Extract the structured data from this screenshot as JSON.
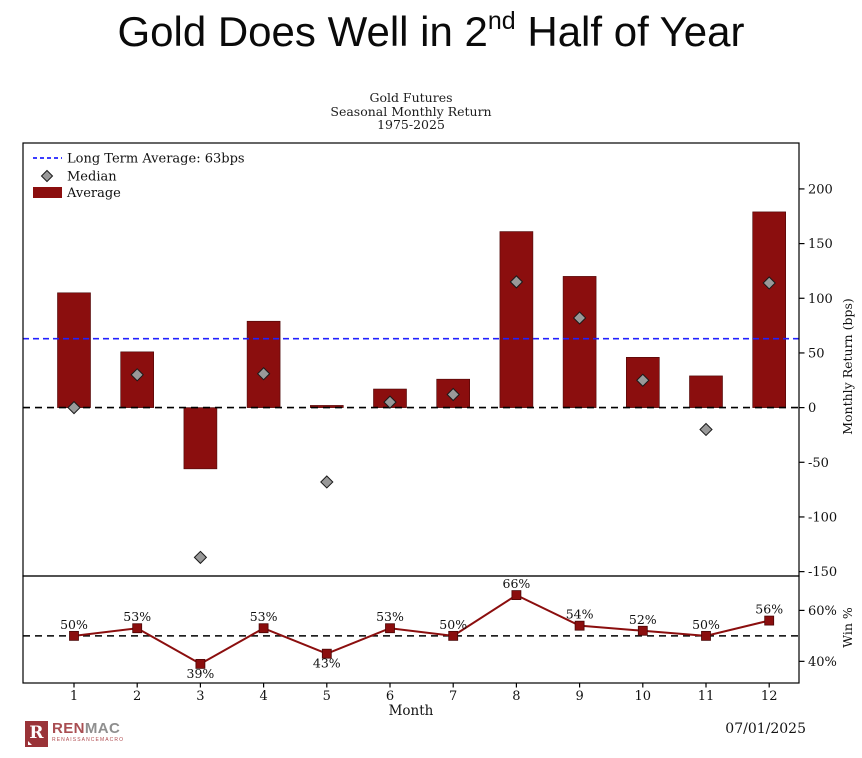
{
  "page_title": {
    "prefix": "Gold Does Well in 2",
    "superscript": "nd",
    "suffix": " Half of Year"
  },
  "chart": {
    "title_lines": [
      "Gold Futures",
      "Seasonal Monthly Return",
      "1975-2025"
    ],
    "legend": [
      {
        "label": "Long Term Average: 63bps",
        "symbol": "blue-dashed-line"
      },
      {
        "label": "Median",
        "symbol": "gray-diamond"
      },
      {
        "label": "Average",
        "symbol": "dark-red-bar"
      }
    ],
    "right_axis_label": "Monthly Return (bps)",
    "win_axis_label": "Win %",
    "x_axis_label": "Month"
  },
  "footer": {
    "logo_letter": "R",
    "logo_name_red": "REN",
    "logo_name_gray": "MAC",
    "logo_subtext": "RENAISSANCEMACRO",
    "date": "07/01/2025"
  },
  "colors": {
    "bar": "#8b0e0e",
    "bar_edge": "#4a0606",
    "win_line": "#8b0e0e",
    "median_fill": "#999999",
    "median_edge": "#1a1a1a",
    "long_term_avg_line": "#2020ff",
    "axis": "#000000",
    "text": "#111111"
  },
  "chart_data": {
    "type": "bar",
    "title": "Gold Futures Seasonal Monthly Return 1975-2025",
    "xlabel": "Month",
    "categories": [
      1,
      2,
      3,
      4,
      5,
      6,
      7,
      8,
      9,
      10,
      11,
      12
    ],
    "series": [
      {
        "name": "Average",
        "type": "bar",
        "unit": "bps",
        "values": [
          105,
          51,
          -56,
          79,
          2,
          17,
          26,
          161,
          120,
          46,
          29,
          179
        ]
      },
      {
        "name": "Median",
        "type": "scatter",
        "unit": "bps",
        "values": [
          0,
          30,
          -137,
          31,
          -68,
          5,
          12,
          115,
          82,
          25,
          -20,
          114
        ]
      },
      {
        "name": "Win %",
        "type": "line",
        "unit": "%",
        "values": [
          50,
          53,
          39,
          53,
          43,
          53,
          50,
          66,
          54,
          52,
          50,
          56
        ],
        "labels": [
          "50%",
          "53%",
          "39%",
          "53%",
          "43%",
          "53%",
          "50%",
          "66%",
          "54%",
          "52%",
          "50%",
          "56%"
        ],
        "label_below_months": [
          3,
          5
        ]
      }
    ],
    "long_term_average_bps": 63,
    "top_panel": {
      "ylabel": "Monthly Return (bps)",
      "ylim": [
        -154,
        242
      ],
      "yticks": [
        200,
        150,
        100,
        50,
        0,
        -50,
        -100,
        -150
      ],
      "zero_line": 0,
      "grid": false
    },
    "bottom_panel": {
      "ylabel": "Win %",
      "ylim": [
        31.5,
        73.5
      ],
      "yticks": [
        60,
        40
      ],
      "ytick_labels": [
        "60%",
        "40%"
      ],
      "reference_line_pct": 50,
      "grid": false
    },
    "legend_position": "upper left"
  }
}
